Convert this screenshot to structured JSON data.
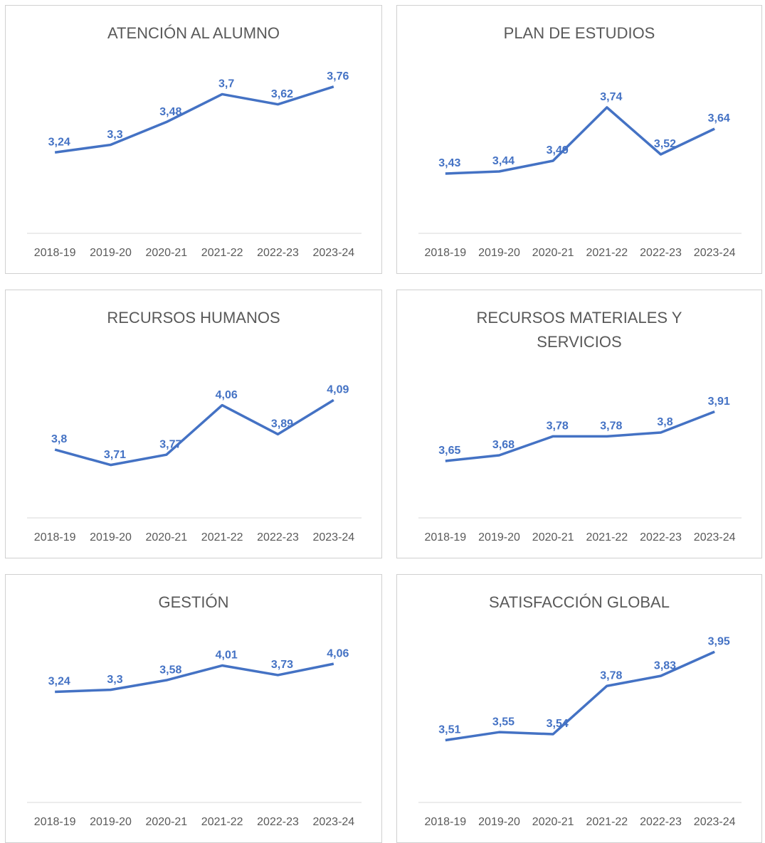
{
  "chart_data": [
    {
      "type": "line",
      "title": "ATENCIÓN AL ALUMNO",
      "categories": [
        "2018-19",
        "2019-20",
        "2020-21",
        "2021-22",
        "2022-23",
        "2023-24"
      ],
      "values": [
        3.24,
        3.3,
        3.48,
        3.7,
        3.62,
        3.76
      ],
      "value_labels": [
        "3,24",
        "3,3",
        "3,48",
        "3,7",
        "3,62",
        "3,76"
      ],
      "color": "#4472c4",
      "ylim": [
        2.6,
        3.95
      ]
    },
    {
      "type": "line",
      "title": "PLAN DE ESTUDIOS",
      "categories": [
        "2018-19",
        "2019-20",
        "2020-21",
        "2021-22",
        "2022-23",
        "2023-24"
      ],
      "values": [
        3.43,
        3.44,
        3.49,
        3.74,
        3.52,
        3.64
      ],
      "value_labels": [
        "3,43",
        "3,44",
        "3,49",
        "3,74",
        "3,52",
        "3,64"
      ],
      "color": "#4472c4",
      "ylim": [
        3.15,
        3.95
      ]
    },
    {
      "type": "line",
      "title": "RECURSOS HUMANOS",
      "categories": [
        "2018-19",
        "2019-20",
        "2020-21",
        "2021-22",
        "2022-23",
        "2023-24"
      ],
      "values": [
        3.8,
        3.71,
        3.77,
        4.06,
        3.89,
        4.09
      ],
      "value_labels": [
        "3,8",
        "3,71",
        "3,77",
        "4,06",
        "3,89",
        "4,09"
      ],
      "color": "#4472c4",
      "ylim": [
        3.4,
        4.4
      ]
    },
    {
      "type": "line",
      "title": "RECURSOS MATERIALES Y SERVICIOS",
      "categories": [
        "2018-19",
        "2019-20",
        "2020-21",
        "2021-22",
        "2022-23",
        "2023-24"
      ],
      "values": [
        3.65,
        3.68,
        3.78,
        3.78,
        3.8,
        3.91
      ],
      "value_labels": [
        "3,65",
        "3,68",
        "3,78",
        "3,78",
        "3,8",
        "3,91"
      ],
      "color": "#4472c4",
      "ylim": [
        3.35,
        4.25
      ]
    },
    {
      "type": "line",
      "title": "GESTIÓN",
      "categories": [
        "2018-19",
        "2019-20",
        "2020-21",
        "2021-22",
        "2022-23",
        "2023-24"
      ],
      "values": [
        3.24,
        3.3,
        3.58,
        4.01,
        3.73,
        4.06
      ],
      "value_labels": [
        "3,24",
        "3,3",
        "3,58",
        "4,01",
        "3,73",
        "4,06"
      ],
      "color": "#4472c4",
      "ylim": [
        0,
        5
      ]
    },
    {
      "type": "line",
      "title": "SATISFACCIÓN GLOBAL",
      "categories": [
        "2018-19",
        "2019-20",
        "2020-21",
        "2021-22",
        "2022-23",
        "2023-24"
      ],
      "values": [
        3.51,
        3.55,
        3.54,
        3.78,
        3.83,
        3.95
      ],
      "value_labels": [
        "3,51",
        "3,55",
        "3,54",
        "3,78",
        "3,83",
        "3,95"
      ],
      "color": "#4472c4",
      "ylim": [
        3.2,
        4.05
      ]
    }
  ]
}
